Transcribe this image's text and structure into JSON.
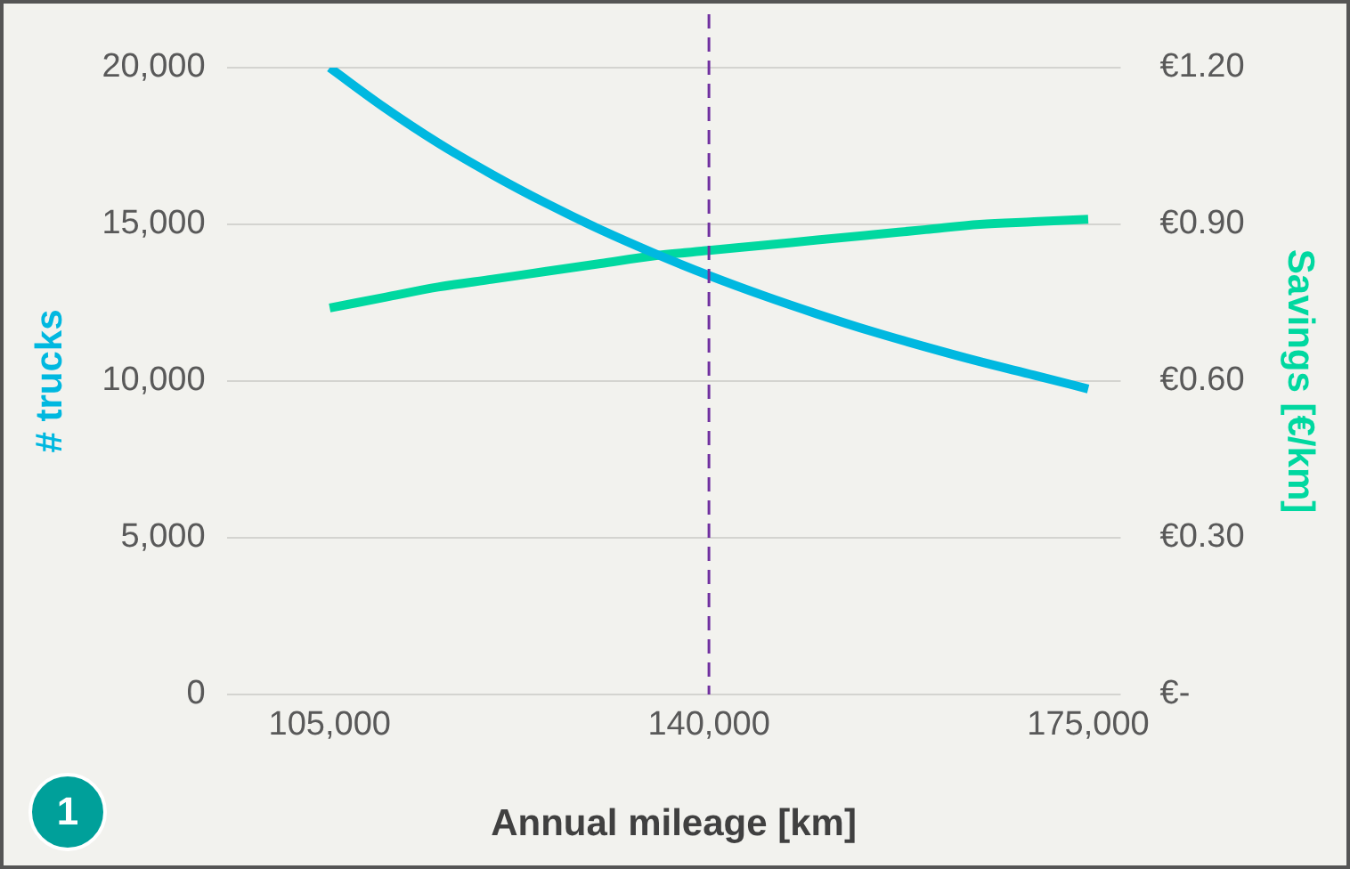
{
  "chart_data": {
    "type": "line",
    "xlabel": "Annual mileage [km]",
    "ylabel": "# trucks",
    "y2label": "Savings [€/km]",
    "x": [
      105000,
      110000,
      115000,
      120000,
      125000,
      130000,
      135000,
      140000,
      145000,
      150000,
      155000,
      160000,
      165000,
      170000,
      175000
    ],
    "series": [
      {
        "color": "#00b8e0",
        "values": [
          20000,
          18740,
          17600,
          16590,
          15670,
          14830,
          14070,
          13370,
          12730,
          12140,
          11590,
          11090,
          10620,
          10190,
          9750
        ]
      },
      {
        "color": "#00d8a0",
        "axis": "y2",
        "values": [
          0.74,
          0.76,
          0.78,
          0.795,
          0.81,
          0.825,
          0.84,
          0.85,
          0.86,
          0.87,
          0.88,
          0.89,
          0.9,
          0.905,
          0.91
        ]
      }
    ],
    "xlim": [
      95500,
      178000
    ],
    "xticks": [
      {
        "value": 105000,
        "label": "105,000"
      },
      {
        "value": 140000,
        "label": "140,000"
      },
      {
        "value": 175000,
        "label": "175,000"
      }
    ],
    "ylim": [
      0,
      20000
    ],
    "yticks": [
      0,
      {
        "value": 5000,
        "label": "5,000"
      },
      {
        "value": 10000,
        "label": "10,000"
      },
      {
        "value": 15000,
        "label": "15,000"
      },
      {
        "value": 20000,
        "label": "20,000"
      }
    ],
    "y2lim": [
      0,
      1.2
    ],
    "y2ticks": [
      {
        "value": 0,
        "label": "€-"
      },
      {
        "value": 0.3,
        "label": "€0.30"
      },
      {
        "value": 0.6,
        "label": "€0.60"
      },
      {
        "value": 0.9,
        "label": "€0.90"
      },
      {
        "value": 1.2,
        "label": "€1.20"
      }
    ],
    "ref_lines": [
      {
        "axis": "x",
        "value": 140000,
        "color": "#7030a0",
        "line_style": "dashed"
      }
    ],
    "annotations": [
      "1"
    ],
    "grid": "y",
    "legend": false,
    "marker": "none",
    "line_style": "solid"
  }
}
